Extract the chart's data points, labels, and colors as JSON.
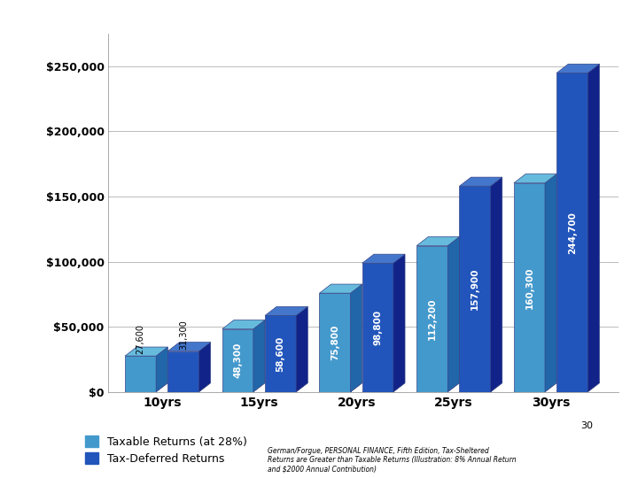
{
  "categories": [
    "10yrs",
    "15yrs",
    "20yrs",
    "25yrs",
    "30yrs"
  ],
  "taxable_values": [
    27600,
    48300,
    75800,
    112200,
    160300
  ],
  "deferred_values": [
    31300,
    58600,
    98800,
    157900,
    244700
  ],
  "taxable_color_front": "#4499CC",
  "taxable_color_side": "#2266AA",
  "taxable_color_top": "#66BBDD",
  "deferred_color_front": "#2255BB",
  "deferred_color_side": "#112288",
  "deferred_color_top": "#4477CC",
  "floor_color": "#AAAAAA",
  "bar_width": 0.32,
  "depth": 0.12,
  "ylim": [
    0,
    275000
  ],
  "yticks": [
    0,
    50000,
    100000,
    150000,
    200000,
    250000
  ],
  "ytick_labels": [
    "$0",
    "$50,000",
    "$100,000",
    "$150,000",
    "$200,000",
    "$250,000"
  ],
  "legend_taxable": "Taxable Returns (at 28%)",
  "legend_deferred": "Tax-Deferred Returns",
  "footnote": "German/Forgue, PERSONAL FINANCE, Fifth Edition, Tax-Sheltered\nReturns are Greater than Taxable Returns (Illustration: 8% Annual Return\nand $2000 Annual Contribution)",
  "page_num": "30",
  "background_color": "#FFFFFF",
  "plot_bg": "#FFFFFF",
  "grid_color": "#BBBBBB"
}
